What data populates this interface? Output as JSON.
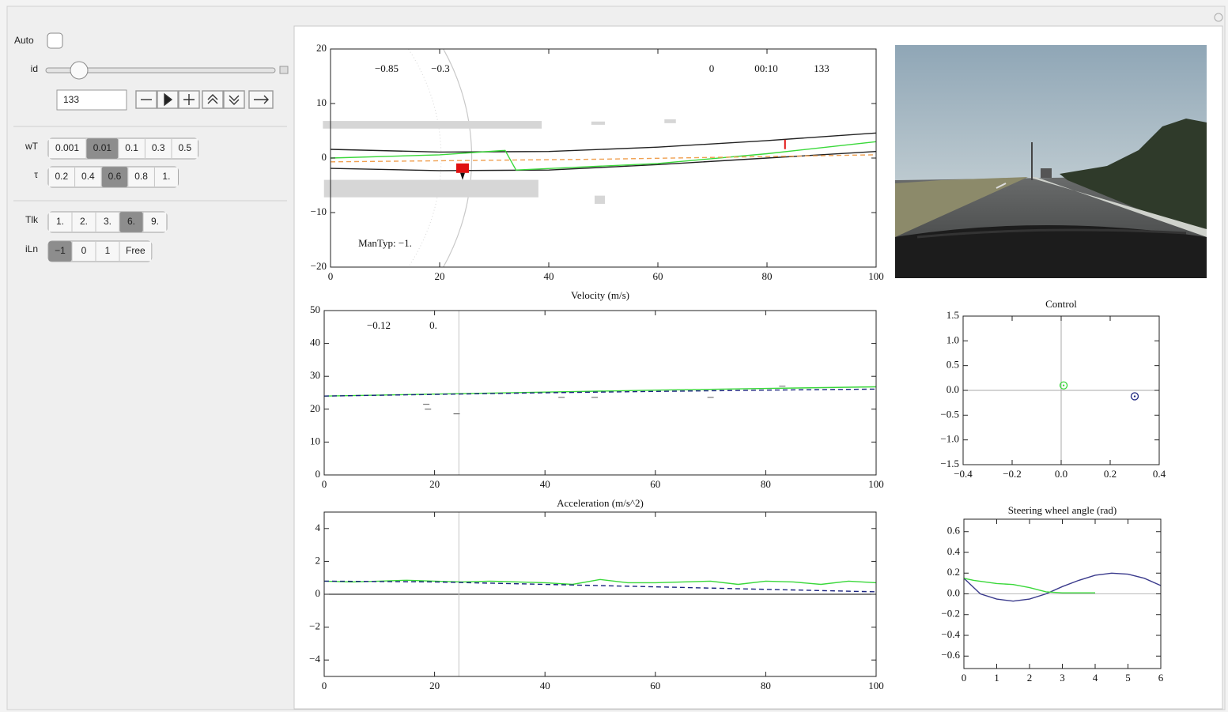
{
  "controls": {
    "auto": {
      "label": "Auto",
      "checked": false
    },
    "id": {
      "label": "id",
      "value": "133"
    },
    "setters": [
      {
        "label": "wT",
        "options": [
          "0.001",
          "0.01",
          "0.1",
          "0.3",
          "0.5"
        ],
        "selected": 1
      },
      {
        "label": "τ",
        "options": [
          "0.2",
          "0.4",
          "0.6",
          "0.8",
          "1."
        ],
        "selected": 2
      },
      {
        "label": "Tlk",
        "options": [
          "1.",
          "2.",
          "3.",
          "6.",
          "9."
        ],
        "selected": 3
      },
      {
        "label": "iLn",
        "options": [
          "−1",
          "0",
          "1",
          "Free"
        ],
        "selected": 0
      }
    ]
  },
  "chart_data": [
    {
      "type": "line",
      "xlim": [
        0,
        100
      ],
      "ylim": [
        -20,
        20
      ],
      "xticks": [
        0,
        20,
        40,
        60,
        80,
        100
      ],
      "yticks": [
        {
          "value": -20,
          "label": "−20"
        },
        {
          "value": -10,
          "label": "−10"
        },
        0,
        10,
        20
      ],
      "annotations": [
        "−0.85",
        "−0.3",
        "0",
        "00:10",
        "133",
        "ManTyp: −1."
      ],
      "obstacles": [
        {
          "x": [
            -1.4,
            38.7
          ],
          "y": [
            5.4,
            6.8
          ]
        },
        {
          "x": [
            -1.2,
            38.1
          ],
          "y": [
            -7.2,
            -4
          ]
        },
        {
          "x": [
            47.8,
            50.3
          ],
          "y": [
            6.1,
            6.7
          ]
        },
        {
          "x": [
            61.2,
            63.3
          ],
          "y": [
            6.4,
            7.1
          ]
        },
        {
          "x": [
            48.4,
            50.3
          ],
          "y": [
            -8.4,
            -6.9
          ]
        }
      ],
      "obstacle_color": "#d6d6d6",
      "series": [
        {
          "color": "#222222",
          "x": [
            0,
            20,
            40,
            60,
            80,
            100
          ],
          "values": [
            1.6,
            1.1,
            1.2,
            2.0,
            3.2,
            4.6
          ]
        },
        {
          "color": "#222222",
          "x": [
            0,
            20,
            40,
            60,
            80,
            100
          ],
          "values": [
            -1.9,
            -2.3,
            -2.2,
            -1.2,
            0,
            1.2
          ]
        },
        {
          "color": "#3ad83a",
          "x": [
            0,
            20,
            32,
            34,
            60,
            80,
            100
          ],
          "values": [
            0,
            0.6,
            1.4,
            -2.2,
            -1,
            0.8,
            3
          ]
        },
        {
          "color": "#f0a050",
          "dashed": true,
          "x": [
            0,
            50,
            100
          ],
          "values": [
            -0.7,
            -0.2,
            0.6
          ]
        },
        {
          "color": "#e01010",
          "marker": "square",
          "x": [
            24.2
          ],
          "values": [
            -2
          ]
        },
        {
          "color": "#e01010",
          "marker": "tick",
          "x": [
            83.3
          ],
          "values": [
            2.5
          ]
        }
      ]
    },
    {
      "type": "line",
      "title": "Velocity (m/s)",
      "xlim": [
        0,
        100
      ],
      "ylim": [
        0,
        50
      ],
      "xticks": [
        0,
        20,
        40,
        60,
        80,
        100
      ],
      "yticks": [
        0,
        10,
        20,
        30,
        40,
        50
      ],
      "annotations": [
        "−0.12",
        "0."
      ],
      "cursor_x": 24.4,
      "series": [
        {
          "color": "#3ad83a",
          "x": [
            0,
            20,
            40,
            60,
            80,
            100
          ],
          "values": [
            24,
            24.6,
            25.2,
            25.8,
            26.3,
            26.8
          ]
        },
        {
          "color": "#1a237e",
          "dashed": true,
          "x": [
            0,
            20,
            40,
            60,
            80,
            100
          ],
          "values": [
            24,
            24.5,
            25,
            25.4,
            25.8,
            26.1
          ]
        },
        {
          "color": "#777777",
          "marker": "dash",
          "x": [
            18.5,
            18.8,
            24,
            43,
            49,
            70,
            83
          ],
          "values": [
            21.5,
            20,
            18.6,
            23.6,
            23.6,
            23.6,
            27
          ]
        }
      ]
    },
    {
      "type": "line",
      "title": "Acceleration (m/s^2)",
      "xlim": [
        0,
        100
      ],
      "ylim": [
        -5,
        5
      ],
      "xticks": [
        0,
        20,
        40,
        60,
        80,
        100
      ],
      "yticks": [
        {
          "value": -4,
          "label": "−4"
        },
        {
          "value": -2,
          "label": "−2"
        },
        0,
        2,
        4
      ],
      "cursor_x": 24.4,
      "zero_line": {
        "y": "#000000"
      },
      "series": [
        {
          "color": "#3ad83a",
          "x": [
            0,
            5,
            10,
            15,
            20,
            25,
            30,
            35,
            40,
            45,
            50,
            55,
            60,
            65,
            70,
            75,
            80,
            85,
            90,
            95,
            100
          ],
          "values": [
            0.8,
            0.75,
            0.8,
            0.85,
            0.8,
            0.75,
            0.8,
            0.75,
            0.7,
            0.6,
            0.9,
            0.7,
            0.7,
            0.75,
            0.8,
            0.6,
            0.8,
            0.75,
            0.6,
            0.8,
            0.7
          ]
        },
        {
          "color": "#1a237e",
          "dashed": true,
          "x": [
            0,
            20,
            40,
            60,
            80,
            100
          ],
          "values": [
            0.8,
            0.75,
            0.6,
            0.45,
            0.3,
            0.15
          ]
        }
      ]
    },
    {
      "type": "scatter",
      "title": "Control",
      "xlim": [
        -0.4,
        0.4
      ],
      "ylim": [
        -1.5,
        1.5
      ],
      "xticks": [
        {
          "value": -0.4,
          "label": "−0.4"
        },
        {
          "value": -0.2,
          "label": "−0.2"
        },
        {
          "value": 0,
          "label": "0.0"
        },
        0.2,
        0.4
      ],
      "yticks": [
        {
          "value": -1.5,
          "label": "−1.5"
        },
        {
          "value": -1,
          "label": "−1.0"
        },
        {
          "value": -0.5,
          "label": "−0.5"
        },
        {
          "value": 0,
          "label": "0.0"
        },
        0.5,
        {
          "value": 1,
          "label": "1.0"
        },
        1.5
      ],
      "zero_line": {
        "x": "#aaaaaa",
        "y": "#aaaaaa"
      },
      "series": [
        {
          "color": "#3ad83a",
          "marker": "ring",
          "x": [
            0.01
          ],
          "values": [
            0.1
          ]
        },
        {
          "color": "#1a237e",
          "marker": "ring",
          "x": [
            0.3
          ],
          "values": [
            -0.12
          ]
        }
      ]
    },
    {
      "type": "line",
      "title": "Steering wheel angle (rad)",
      "xlim": [
        0,
        6
      ],
      "ylim": [
        -0.72,
        0.72
      ],
      "xticks": [
        0,
        1,
        2,
        3,
        4,
        5,
        6
      ],
      "yticks": [
        {
          "value": -0.6,
          "label": "−0.6"
        },
        {
          "value": -0.4,
          "label": "−0.4"
        },
        {
          "value": -0.2,
          "label": "−0.2"
        },
        {
          "value": 0,
          "label": "0.0"
        },
        0.2,
        0.4,
        0.6
      ],
      "zero_line": {
        "y": "#bbbbbb"
      },
      "series": [
        {
          "color": "#3a3a8c",
          "x": [
            0,
            0.5,
            1,
            1.5,
            2,
            2.5,
            3,
            3.5,
            4,
            4.5,
            5,
            5.5,
            6
          ],
          "values": [
            0.15,
            0.0,
            -0.05,
            -0.07,
            -0.05,
            0.0,
            0.07,
            0.13,
            0.18,
            0.2,
            0.19,
            0.15,
            0.08
          ]
        },
        {
          "color": "#3ad83a",
          "x": [
            0,
            0.3,
            1,
            1.5,
            2,
            2.5,
            3,
            3.5,
            4
          ],
          "values": [
            0.15,
            0.13,
            0.1,
            0.09,
            0.06,
            0.02,
            0.01,
            0.01,
            0.01
          ]
        }
      ]
    }
  ]
}
